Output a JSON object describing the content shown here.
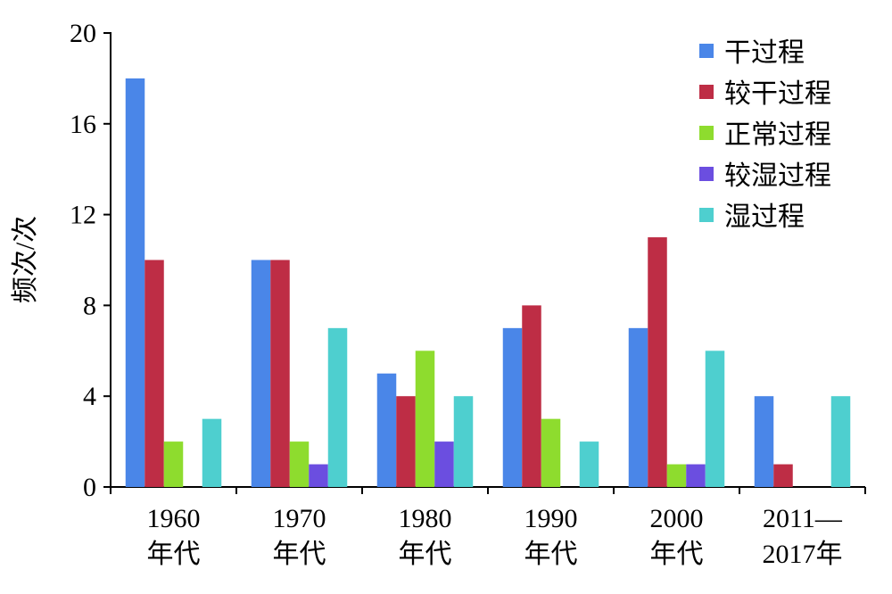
{
  "chart_data": {
    "type": "bar",
    "categories": [
      [
        "1960",
        "年代"
      ],
      [
        "1970",
        "年代"
      ],
      [
        "1980",
        "年代"
      ],
      [
        "1990",
        "年代"
      ],
      [
        "2000",
        "年代"
      ],
      [
        "2011—",
        "2017年"
      ]
    ],
    "series": [
      {
        "name": "干过程",
        "color": "#4a86e8",
        "values": [
          18,
          10,
          5,
          7,
          7,
          4
        ]
      },
      {
        "name": "较干过程",
        "color": "#be2d45",
        "values": [
          10,
          10,
          4,
          8,
          11,
          1
        ]
      },
      {
        "name": "正常过程",
        "color": "#8edc2e",
        "values": [
          2,
          2,
          6,
          3,
          1,
          0
        ]
      },
      {
        "name": "较湿过程",
        "color": "#6b4ee0",
        "values": [
          0,
          1,
          2,
          0,
          1,
          0
        ]
      },
      {
        "name": "湿过程",
        "color": "#4ecfcf",
        "values": [
          3,
          7,
          4,
          2,
          6,
          4
        ]
      }
    ],
    "ylabel": "频次/次",
    "xlabel": "",
    "ylim": [
      0,
      20
    ],
    "yticks": [
      0,
      4,
      8,
      12,
      16,
      20
    ],
    "legend": "top-right",
    "grid": false
  }
}
